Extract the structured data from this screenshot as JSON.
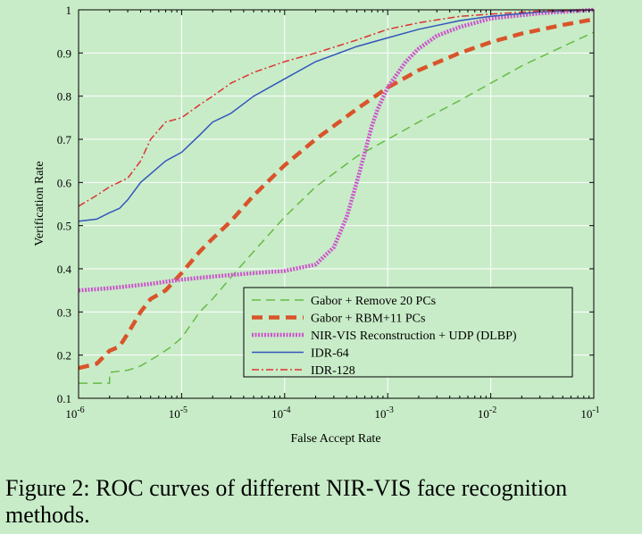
{
  "chart_data": {
    "type": "line",
    "xscale": "log",
    "xlabel": "False Accept Rate",
    "ylabel": "Verification Rate",
    "xlim": [
      1e-06,
      0.1
    ],
    "ylim": [
      0.1,
      1.0
    ],
    "xticks": [
      {
        "value": 1e-06,
        "base": "10",
        "exp": "-6"
      },
      {
        "value": 1e-05,
        "base": "10",
        "exp": "-5"
      },
      {
        "value": 0.0001,
        "base": "10",
        "exp": "-4"
      },
      {
        "value": 0.001,
        "base": "10",
        "exp": "-3"
      },
      {
        "value": 0.01,
        "base": "10",
        "exp": "-2"
      },
      {
        "value": 0.1,
        "base": "10",
        "exp": "-1"
      }
    ],
    "yticks": [
      {
        "value": 0.1,
        "label": "0.1"
      },
      {
        "value": 0.2,
        "label": "0.2"
      },
      {
        "value": 0.3,
        "label": "0.3"
      },
      {
        "value": 0.4,
        "label": "0.4"
      },
      {
        "value": 0.5,
        "label": "0.5"
      },
      {
        "value": 0.6,
        "label": "0.6"
      },
      {
        "value": 0.7,
        "label": "0.7"
      },
      {
        "value": 0.8,
        "label": "0.8"
      },
      {
        "value": 0.9,
        "label": "0.9"
      },
      {
        "value": 1.0,
        "label": "1"
      }
    ],
    "grid": true,
    "legend_position": "bottom-right",
    "series": [
      {
        "name": "Gabor + Remove 20 PCs",
        "color": "#66bb44",
        "style": "dashed",
        "points": [
          [
            1e-06,
            0.135
          ],
          [
            2e-06,
            0.135
          ],
          [
            2e-06,
            0.16
          ],
          [
            3e-06,
            0.165
          ],
          [
            4e-06,
            0.175
          ],
          [
            6e-06,
            0.2
          ],
          [
            8e-06,
            0.22
          ],
          [
            1e-05,
            0.24
          ],
          [
            1.5e-05,
            0.3
          ],
          [
            2e-05,
            0.33
          ],
          [
            3e-05,
            0.38
          ],
          [
            5e-05,
            0.44
          ],
          [
            0.0001,
            0.52
          ],
          [
            0.0002,
            0.59
          ],
          [
            0.0005,
            0.66
          ],
          [
            0.001,
            0.7
          ],
          [
            0.002,
            0.74
          ],
          [
            0.005,
            0.79
          ],
          [
            0.01,
            0.83
          ],
          [
            0.02,
            0.87
          ],
          [
            0.05,
            0.915
          ],
          [
            0.1,
            0.948
          ]
        ]
      },
      {
        "name": "Gabor + RBM+11 PCs",
        "color": "#d9542a",
        "style": "thick-dashed",
        "points": [
          [
            1e-06,
            0.17
          ],
          [
            1.5e-06,
            0.18
          ],
          [
            2e-06,
            0.21
          ],
          [
            2.5e-06,
            0.22
          ],
          [
            3e-06,
            0.25
          ],
          [
            4e-06,
            0.3
          ],
          [
            5e-06,
            0.33
          ],
          [
            7e-06,
            0.35
          ],
          [
            1e-05,
            0.39
          ],
          [
            1.5e-05,
            0.44
          ],
          [
            2e-05,
            0.47
          ],
          [
            3e-05,
            0.51
          ],
          [
            5e-05,
            0.57
          ],
          [
            0.0001,
            0.64
          ],
          [
            0.0002,
            0.7
          ],
          [
            0.0005,
            0.77
          ],
          [
            0.001,
            0.82
          ],
          [
            0.002,
            0.86
          ],
          [
            0.005,
            0.9
          ],
          [
            0.01,
            0.925
          ],
          [
            0.02,
            0.945
          ],
          [
            0.05,
            0.965
          ],
          [
            0.1,
            0.978
          ]
        ]
      },
      {
        "name": "NIR-VIS Reconstruction + UDP (DLBP)",
        "color": "#cc55cc",
        "style": "dotted",
        "points": [
          [
            1e-06,
            0.35
          ],
          [
            2e-06,
            0.355
          ],
          [
            5e-06,
            0.365
          ],
          [
            1e-05,
            0.375
          ],
          [
            2e-05,
            0.382
          ],
          [
            5e-05,
            0.39
          ],
          [
            0.0001,
            0.395
          ],
          [
            0.0002,
            0.41
          ],
          [
            0.0003,
            0.45
          ],
          [
            0.0004,
            0.52
          ],
          [
            0.0005,
            0.6
          ],
          [
            0.0006,
            0.67
          ],
          [
            0.0007,
            0.73
          ],
          [
            0.0008,
            0.77
          ],
          [
            0.001,
            0.82
          ],
          [
            0.0015,
            0.88
          ],
          [
            0.002,
            0.91
          ],
          [
            0.003,
            0.94
          ],
          [
            0.005,
            0.96
          ],
          [
            0.01,
            0.98
          ],
          [
            0.03,
            0.992
          ],
          [
            0.1,
            1.0
          ]
        ]
      },
      {
        "name": "IDR-64",
        "color": "#3355bb",
        "style": "solid",
        "points": [
          [
            1e-06,
            0.51
          ],
          [
            1.5e-06,
            0.515
          ],
          [
            2e-06,
            0.53
          ],
          [
            2.5e-06,
            0.54
          ],
          [
            3e-06,
            0.56
          ],
          [
            4e-06,
            0.6
          ],
          [
            5e-06,
            0.62
          ],
          [
            7e-06,
            0.65
          ],
          [
            1e-05,
            0.67
          ],
          [
            1.5e-05,
            0.71
          ],
          [
            2e-05,
            0.74
          ],
          [
            3e-05,
            0.76
          ],
          [
            5e-05,
            0.8
          ],
          [
            0.0001,
            0.84
          ],
          [
            0.0002,
            0.88
          ],
          [
            0.0005,
            0.915
          ],
          [
            0.001,
            0.935
          ],
          [
            0.002,
            0.955
          ],
          [
            0.005,
            0.975
          ],
          [
            0.01,
            0.985
          ],
          [
            0.03,
            0.995
          ],
          [
            0.1,
            1.0
          ]
        ]
      },
      {
        "name": "IDR-128",
        "color": "#dd3333",
        "style": "dash-dot",
        "points": [
          [
            1e-06,
            0.545
          ],
          [
            1.5e-06,
            0.57
          ],
          [
            2e-06,
            0.59
          ],
          [
            3e-06,
            0.61
          ],
          [
            4e-06,
            0.65
          ],
          [
            5e-06,
            0.7
          ],
          [
            7e-06,
            0.74
          ],
          [
            1e-05,
            0.75
          ],
          [
            1.5e-05,
            0.78
          ],
          [
            2e-05,
            0.8
          ],
          [
            3e-05,
            0.83
          ],
          [
            5e-05,
            0.855
          ],
          [
            0.0001,
            0.88
          ],
          [
            0.0002,
            0.9
          ],
          [
            0.0005,
            0.93
          ],
          [
            0.001,
            0.955
          ],
          [
            0.002,
            0.97
          ],
          [
            0.005,
            0.985
          ],
          [
            0.01,
            0.99
          ],
          [
            0.03,
            0.997
          ],
          [
            0.1,
            1.0
          ]
        ]
      }
    ]
  },
  "caption": "Figure 2: ROC curves of different NIR-VIS face recognition methods."
}
